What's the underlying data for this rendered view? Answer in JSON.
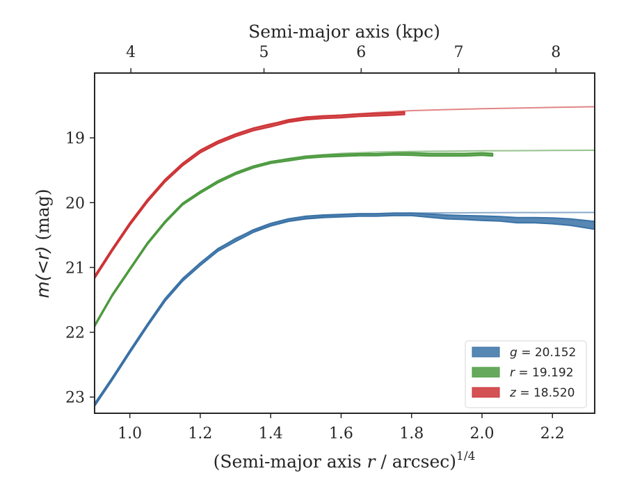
{
  "chart_data": {
    "type": "line",
    "xlabel": {
      "prefix": "(Semi-major axis ",
      "var": "r",
      "suffix": " / arcsec)",
      "sup": "1/4"
    },
    "x2label": "Semi-major axis (kpc)",
    "ylabel": {
      "var": "m(<r)",
      "suffix": " (mag)"
    },
    "xlim": [
      0.9,
      2.32
    ],
    "ylim": [
      23.25,
      18.0
    ],
    "y_inverted": true,
    "xticks": [
      1.0,
      1.2,
      1.4,
      1.6,
      1.8,
      2.0,
      2.2
    ],
    "xtick_labels": [
      "1.0",
      "1.2",
      "1.4",
      "1.6",
      "1.8",
      "2.0",
      "2.2"
    ],
    "yticks": [
      19,
      20,
      21,
      22,
      23
    ],
    "ytick_labels": [
      "19",
      "20",
      "21",
      "22",
      "23"
    ],
    "x2ticks": [
      4,
      5,
      6,
      7,
      8
    ],
    "x2tick_labels": [
      "4",
      "5",
      "6",
      "7",
      "8"
    ],
    "x2_to_x": [
      [
        4,
        1.003
      ],
      [
        5,
        1.381
      ],
      [
        6,
        1.657
      ],
      [
        7,
        1.934
      ],
      [
        8,
        2.21
      ]
    ],
    "legend_placement": "lower-right",
    "grid": false,
    "series": [
      {
        "name": "g = 20.152",
        "legend_var": "g",
        "legend_value": "20.152",
        "color": "#3a72a6",
        "model": {
          "x": [
            0.9,
            0.95,
            1.0,
            1.05,
            1.1,
            1.15,
            1.2,
            1.25,
            1.3,
            1.35,
            1.4,
            1.45,
            1.5,
            1.55,
            1.6,
            1.7,
            1.8,
            2.0,
            2.2,
            2.32
          ],
          "y": [
            23.12,
            22.7,
            22.3,
            21.9,
            21.5,
            21.18,
            20.93,
            20.72,
            20.55,
            20.43,
            20.35,
            20.28,
            20.24,
            20.21,
            20.19,
            20.17,
            20.16,
            20.155,
            20.153,
            20.152
          ]
        },
        "measured": {
          "x": [
            0.9,
            0.95,
            1.0,
            1.05,
            1.1,
            1.15,
            1.2,
            1.25,
            1.3,
            1.35,
            1.4,
            1.45,
            1.5,
            1.55,
            1.6,
            1.65,
            1.7,
            1.75,
            1.8,
            1.85,
            1.9,
            1.95,
            2.0,
            2.05,
            2.1,
            2.15,
            2.2,
            2.25,
            2.32
          ],
          "y": [
            23.12,
            22.72,
            22.3,
            21.89,
            21.5,
            21.19,
            20.95,
            20.73,
            20.58,
            20.44,
            20.34,
            20.27,
            20.23,
            20.21,
            20.2,
            20.19,
            20.19,
            20.18,
            20.18,
            20.2,
            20.22,
            20.23,
            20.24,
            20.25,
            20.27,
            20.27,
            20.28,
            20.3,
            20.35
          ],
          "err": [
            0.02,
            0.02,
            0.02,
            0.02,
            0.02,
            0.02,
            0.02,
            0.02,
            0.02,
            0.02,
            0.02,
            0.02,
            0.02,
            0.02,
            0.02,
            0.02,
            0.02,
            0.02,
            0.02,
            0.025,
            0.03,
            0.03,
            0.035,
            0.035,
            0.04,
            0.04,
            0.045,
            0.05,
            0.06
          ]
        }
      },
      {
        "name": "r = 19.192",
        "legend_var": "r",
        "legend_value": "19.192",
        "color": "#4c9a3f",
        "model": {
          "x": [
            0.9,
            0.95,
            1.0,
            1.05,
            1.1,
            1.15,
            1.2,
            1.25,
            1.3,
            1.35,
            1.4,
            1.45,
            1.5,
            1.55,
            1.6,
            1.7,
            1.8,
            2.0,
            2.2,
            2.32
          ],
          "y": [
            21.9,
            21.42,
            21.02,
            20.63,
            20.3,
            20.02,
            19.83,
            19.66,
            19.54,
            19.44,
            19.37,
            19.32,
            19.28,
            19.26,
            19.24,
            19.22,
            19.21,
            19.2,
            19.195,
            19.192
          ]
        },
        "measured": {
          "x": [
            0.9,
            0.95,
            1.0,
            1.05,
            1.1,
            1.15,
            1.2,
            1.25,
            1.3,
            1.35,
            1.4,
            1.45,
            1.5,
            1.55,
            1.6,
            1.65,
            1.7,
            1.75,
            1.8,
            1.85,
            1.9,
            1.95,
            2.0,
            2.03
          ],
          "y": [
            21.9,
            21.43,
            21.03,
            20.63,
            20.3,
            20.02,
            19.84,
            19.68,
            19.55,
            19.45,
            19.38,
            19.34,
            19.3,
            19.28,
            19.27,
            19.26,
            19.26,
            19.25,
            19.25,
            19.26,
            19.26,
            19.26,
            19.25,
            19.26
          ],
          "err": [
            0.015,
            0.015,
            0.015,
            0.015,
            0.015,
            0.015,
            0.015,
            0.015,
            0.015,
            0.015,
            0.015,
            0.015,
            0.015,
            0.015,
            0.015,
            0.015,
            0.015,
            0.015,
            0.02,
            0.02,
            0.02,
            0.02,
            0.02,
            0.02
          ]
        }
      },
      {
        "name": "z = 18.520",
        "legend_var": "z",
        "legend_value": "18.520",
        "color": "#cd3336",
        "model": {
          "x": [
            0.9,
            0.95,
            1.0,
            1.05,
            1.1,
            1.15,
            1.2,
            1.25,
            1.3,
            1.35,
            1.4,
            1.45,
            1.5,
            1.55,
            1.6,
            1.7,
            1.8,
            2.0,
            2.2,
            2.32
          ],
          "y": [
            21.15,
            20.72,
            20.32,
            19.97,
            19.66,
            19.4,
            19.2,
            19.06,
            18.95,
            18.85,
            18.78,
            18.74,
            18.7,
            18.67,
            18.65,
            18.61,
            18.58,
            18.55,
            18.53,
            18.52
          ]
        },
        "measured": {
          "x": [
            0.9,
            0.95,
            1.0,
            1.05,
            1.1,
            1.15,
            1.2,
            1.25,
            1.3,
            1.35,
            1.4,
            1.45,
            1.5,
            1.55,
            1.6,
            1.65,
            1.7,
            1.75,
            1.78
          ],
          "y": [
            21.15,
            20.73,
            20.33,
            19.97,
            19.66,
            19.41,
            19.21,
            19.07,
            18.96,
            18.87,
            18.81,
            18.74,
            18.7,
            18.68,
            18.67,
            18.65,
            18.64,
            18.63,
            18.62
          ]
        },
        "measured_err": 0.02
      }
    ]
  }
}
